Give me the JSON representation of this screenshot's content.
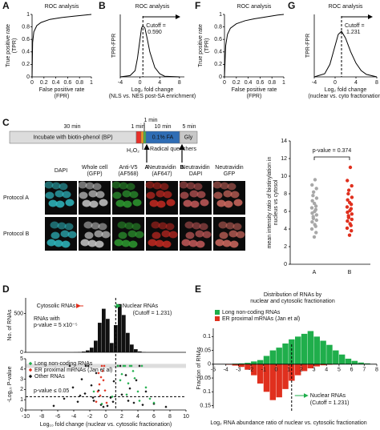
{
  "roc_panels": [
    {
      "letter": "A",
      "type": "roc",
      "title": "ROC analysis",
      "ylabel": [
        "True positive rate",
        "(TPR)"
      ],
      "xlabel": [
        "False positive rate",
        "(FPR)"
      ],
      "xlim": [
        0,
        1
      ],
      "ylim": [
        0,
        1
      ],
      "xticks": [
        0,
        0.2,
        0.4,
        0.6,
        0.8,
        1
      ],
      "yticks": [
        0,
        0.2,
        0.4,
        0.6,
        0.8,
        1
      ],
      "curve": {
        "x": [
          0,
          0.01,
          0.03,
          0.08,
          0.15,
          0.3,
          0.5,
          0.7,
          0.9,
          1
        ],
        "y": [
          0,
          0.55,
          0.72,
          0.82,
          0.87,
          0.92,
          0.95,
          0.97,
          0.99,
          1
        ]
      }
    },
    {
      "letter": "B",
      "type": "cutoff",
      "title": "ROC analysis",
      "ylabel": [
        "TPR-FPR"
      ],
      "xlabel": [
        "Log₂ fold change",
        "(NLS vs. NES post-SA enrichment)"
      ],
      "xlim": [
        -4,
        9
      ],
      "ylim": [
        0,
        1
      ],
      "xticks": [
        -4,
        0,
        4,
        8
      ],
      "curve": {
        "x": [
          -4,
          -2,
          -1,
          -0.5,
          0,
          0.3,
          0.59,
          1,
          1.5,
          2,
          3,
          4,
          5,
          8
        ],
        "y": [
          0,
          0.02,
          0.1,
          0.3,
          0.6,
          0.78,
          0.82,
          0.78,
          0.6,
          0.4,
          0.15,
          0.05,
          0.01,
          0
        ]
      },
      "cutoff_text": "Cutoff =",
      "cutoff": {
        "value": 0.59,
        "label": "0.590"
      }
    },
    {
      "letter": "F",
      "type": "roc",
      "title": "ROC analysis",
      "ylabel": [
        "True positive rate",
        "(TPR)"
      ],
      "xlabel": [
        "False positive rate",
        "(FPR)"
      ],
      "xlim": [
        0,
        1
      ],
      "ylim": [
        0,
        1
      ],
      "xticks": [
        0,
        0.2,
        0.4,
        0.6,
        0.8,
        1
      ],
      "yticks": [
        0,
        0.2,
        0.4,
        0.6,
        0.8,
        1
      ],
      "curve": {
        "x": [
          0,
          0.02,
          0.05,
          0.1,
          0.2,
          0.35,
          0.5,
          0.7,
          0.9,
          1
        ],
        "y": [
          0,
          0.5,
          0.68,
          0.78,
          0.85,
          0.9,
          0.93,
          0.96,
          0.99,
          1
        ]
      }
    },
    {
      "letter": "G",
      "type": "cutoff",
      "title": "ROC analysis",
      "ylabel": [
        "TPR-FPR"
      ],
      "xlabel": [
        "Log₂ fold change",
        "(nuclear vs. cyto fractionation)"
      ],
      "xlim": [
        -4,
        8
      ],
      "ylim": [
        0,
        1
      ],
      "xticks": [
        -4,
        0,
        4,
        8
      ],
      "curve": {
        "x": [
          -4,
          -2,
          -1,
          0,
          0.6,
          1.231,
          2,
          3,
          4,
          5,
          6,
          8
        ],
        "y": [
          0,
          0.05,
          0.2,
          0.5,
          0.68,
          0.73,
          0.62,
          0.4,
          0.22,
          0.1,
          0.04,
          0
        ]
      },
      "cutoff_text": "Cutoff =",
      "cutoff": {
        "value": 1.231,
        "label": "1.231"
      }
    }
  ],
  "panel_c": {
    "letter": "C",
    "durations": [
      "30 min",
      "1 min",
      "1 min",
      "10 min",
      "5 min"
    ],
    "segments": [
      {
        "label": "Incubate with biotin-phenol (BP)",
        "color": "#dcdcdc"
      },
      {
        "color": "#e8302a"
      },
      {
        "color": "#f39a1e"
      },
      {
        "color": "#49b048"
      },
      {
        "label": "0.1% FA",
        "color": "#2f6db5"
      },
      {
        "label": "Gly",
        "color": "#c8c8c8"
      }
    ],
    "h2o2": "H₂O₂",
    "quenchers": "+ Radical quenchers",
    "arrows": [
      "A",
      "B"
    ],
    "headers": [
      {
        "lines": [
          "DAPI"
        ],
        "colors": [
          "#33c4c4"
        ],
        "tint": "#2fb8c0"
      },
      {
        "lines": [
          "Whole cell",
          "(GFP)"
        ],
        "colors": [
          "#9a9a9a",
          "#9a9a9a"
        ],
        "tint": "#c8c8c8"
      },
      {
        "lines": [
          "Anti-V5",
          "(AF568)"
        ],
        "colors": [
          "#22a03a",
          "#22a03a"
        ],
        "tint": "#2e9a30"
      },
      {
        "lines": [
          "Neutravidin",
          "(AF647)"
        ],
        "colors": [
          "#d8241f",
          "#d8241f"
        ],
        "tint": "#c42a22"
      },
      {
        "lines": [
          "Neutravidin",
          "DAPI"
        ],
        "colors": [
          "#d8241f",
          "#33c4c4"
        ],
        "tint": "#c45a5a"
      },
      {
        "lines": [
          "Neutravidin",
          "GFP"
        ],
        "colors": [
          "#d8241f",
          "#9a9a9a"
        ],
        "tint": "#d06a60"
      }
    ],
    "rows": [
      "Protocol A",
      "Protocol B"
    ],
    "scatter": {
      "ylabel": [
        "mean intensity ratio of biotinylation in",
        "nucleus vs cytosol"
      ],
      "ylim": [
        0,
        14
      ],
      "yticks": [
        0,
        2,
        4,
        6,
        8,
        10,
        12,
        14
      ],
      "categories": [
        "A",
        "B"
      ],
      "annotation": "p-value = 0.374",
      "series": [
        {
          "color": "#a8a8a8",
          "values": [
            3.1,
            3.6,
            4.0,
            4.3,
            4.5,
            4.8,
            5.0,
            5.2,
            5.4,
            5.6,
            5.8,
            6.0,
            6.2,
            6.4,
            6.6,
            6.9,
            7.2,
            7.5,
            7.8,
            8.2,
            8.6,
            9.0,
            9.6
          ]
        },
        {
          "color": "#e0301e",
          "values": [
            3.3,
            3.8,
            4.1,
            4.4,
            4.6,
            4.9,
            5.1,
            5.3,
            5.5,
            5.7,
            5.9,
            6.1,
            6.3,
            6.5,
            6.8,
            7.0,
            7.3,
            7.6,
            8.0,
            8.4,
            8.9,
            9.5,
            11.0
          ]
        }
      ]
    }
  },
  "panel_d": {
    "letter": "D",
    "xlim": [
      -10,
      10
    ],
    "xticks": [
      -10,
      -8,
      -6,
      -4,
      -2,
      0,
      2,
      4,
      6,
      8,
      10
    ],
    "xlabel": "Log₁₀ fold change (nuclear vs. cytosolic fractionation)",
    "hist": {
      "ylabel": "No. of RNAs",
      "ylim": [
        0,
        700
      ],
      "yticks": [
        0,
        500
      ],
      "bins": [
        -4,
        -3.5,
        -3,
        -2.5,
        -2,
        -1.5,
        -1,
        -0.5,
        0,
        0.5,
        1,
        1.5,
        2,
        2.5,
        3,
        3.5,
        4,
        4.5,
        5
      ],
      "counts": [
        2,
        5,
        10,
        25,
        60,
        150,
        380,
        560,
        430,
        120,
        350,
        620,
        480,
        250,
        100,
        40,
        12,
        4
      ],
      "color": "#111111"
    },
    "cytosolic": "Cytosolic RNAs",
    "nuclear": "Nuclear RNAs",
    "cutoff_text": "(Cutoff = 1.231)",
    "cutoff": 1.231,
    "pnote": [
      "RNAs with",
      "p-value = 5 x10⁻⁵"
    ],
    "volcano": {
      "ylabel": "-Log₁₀ P-value",
      "ylim": [
        0,
        5
      ],
      "yticks": [
        0,
        1,
        2,
        3,
        4,
        5
      ],
      "significance_line": 1.3,
      "significance_text": "p-value ≤ 0.05",
      "series": [
        {
          "name": "Long non-coding RNAs",
          "color": "#1fae4b",
          "shape": "diamond",
          "x": [
            1.5,
            2,
            2.4,
            2.8,
            3.2,
            3.6,
            4,
            4.5,
            5,
            5.5,
            6,
            1.8,
            2.6,
            3.4,
            4.2,
            -0.5,
            -1.5,
            0.8,
            2.2,
            3
          ],
          "y": [
            4.3,
            3.5,
            4.3,
            2.6,
            4.3,
            3.1,
            1.8,
            4.3,
            2.2,
            1.1,
            0.7,
            2.9,
            1.5,
            3.8,
            0.9,
            0.6,
            1.8,
            1.3,
            4.3,
            4.3
          ]
        },
        {
          "name": "ER proximal mRNAs (Jan et al)",
          "color": "#e0301e",
          "shape": "diamond",
          "x": [
            -0.2,
            -0.4,
            -0.6,
            -0.8,
            -1,
            -0.3,
            -0.5,
            -0.7,
            -0.1,
            -0.9,
            -1.2,
            0.1
          ],
          "y": [
            4.3,
            3.8,
            3.2,
            2.5,
            1.8,
            2.9,
            4.3,
            1.4,
            1.9,
            3.6,
            0.8,
            0.7
          ]
        },
        {
          "name": "Other RNAs",
          "color": "#111111",
          "shape": "diamond",
          "x": [
            -6.5,
            -5.2,
            -4.1,
            -3.5,
            -3,
            -2.6,
            -2.2,
            -1.8,
            -1.5,
            -1.2,
            -0.9,
            -0.6,
            -0.3,
            0.2,
            0.6,
            1,
            1.5,
            2,
            2.5,
            3,
            3.5,
            4.2,
            5,
            6,
            7.5,
            -2.5,
            -1.6,
            1.8,
            2.8,
            3.8,
            -4.5,
            4.6,
            -3.2,
            0.9
          ],
          "y": [
            0.4,
            1.1,
            2.2,
            0.8,
            3,
            1.6,
            4.3,
            2.4,
            0.9,
            3.6,
            1.9,
            0.5,
            0.3,
            0.4,
            1.2,
            2.8,
            4.3,
            1.5,
            3.4,
            2.1,
            0.7,
            4.3,
            1.8,
            0.6,
            0.3,
            4.3,
            1.2,
            4.3,
            0.9,
            2.9,
            4.3,
            0.5,
            1.4,
            0.8
          ]
        }
      ]
    }
  },
  "panel_e": {
    "letter": "E",
    "title": [
      "Distribution of RNAs by",
      "nuclear and cytosolic fractionation"
    ],
    "ylabel": "Fraction of RNAs",
    "xlabel": "Log₂ RNA abundance ratio of nuclear vs. cytosolic fractionation",
    "xlim": [
      -5,
      8
    ],
    "xticks": [
      -5,
      -4,
      -3,
      -2,
      -1,
      0,
      1,
      2,
      3,
      4,
      5,
      6,
      7,
      8
    ],
    "ylim": [
      -0.16,
      0.13
    ],
    "yticks": [
      0.1,
      0.05,
      0,
      {
        "value": -0.05,
        "label": "0.05"
      },
      {
        "value": -0.1,
        "label": "0.1"
      },
      {
        "value": -0.15,
        "label": "0.15"
      }
    ],
    "bins": [
      -5,
      -4.5,
      -4,
      -3.5,
      -3,
      -2.5,
      -2,
      -1.5,
      -1,
      -0.5,
      0,
      0.5,
      1,
      1.5,
      2,
      2.5,
      3,
      3.5,
      4,
      4.5,
      5,
      5.5,
      6,
      6.5,
      7,
      7.5,
      8
    ],
    "series": [
      {
        "name": "Long non-coding RNAs",
        "color": "#1fae4b",
        "values": [
          0,
          0,
          0,
          0.002,
          0.003,
          0.005,
          0.01,
          0.015,
          0.03,
          0.05,
          0.06,
          0.075,
          0.09,
          0.1,
          0.11,
          0.12,
          0.1,
          0.085,
          0.07,
          0.05,
          0.035,
          0.02,
          0.012,
          0.006,
          0.003,
          0.001
        ]
      },
      {
        "name": "ER proximal mRNAs (Jan et al)",
        "color": "#e0301e",
        "values": [
          0,
          0,
          -0.002,
          -0.005,
          -0.01,
          -0.02,
          -0.04,
          -0.07,
          -0.1,
          -0.13,
          -0.12,
          -0.09,
          -0.06,
          -0.04,
          -0.025,
          -0.015,
          -0.008,
          -0.004,
          -0.002,
          -0.001,
          0,
          0,
          0,
          0,
          0,
          0
        ]
      }
    ],
    "nuclear": "Nuclear RNAs",
    "cutoff_text": "(Cutoff = 1.231)",
    "cutoff": 1.231
  }
}
